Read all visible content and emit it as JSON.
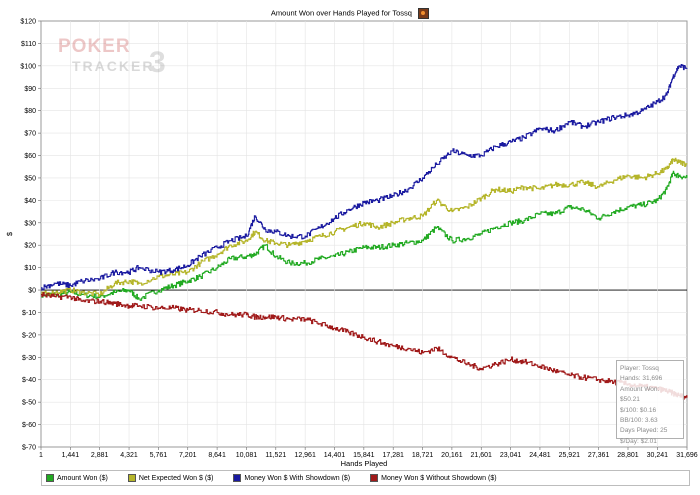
{
  "chart_data": {
    "type": "line",
    "title": "Amount Won over Hands Played for Tossq",
    "xlabel": "Hands Played",
    "ylabel": "$",
    "xlim": [
      1,
      31696
    ],
    "ylim": [
      -70,
      120
    ],
    "x_ticks": [
      "1",
      "1,441",
      "2,881",
      "4,321",
      "5,761",
      "7,201",
      "8,641",
      "10,081",
      "11,521",
      "12,961",
      "14,401",
      "15,841",
      "17,281",
      "18,721",
      "20,161",
      "21,601",
      "23,041",
      "24,481",
      "25,921",
      "27,361",
      "28,801",
      "30,241",
      "31,696"
    ],
    "y_ticks": [
      "$120",
      "$110",
      "$100",
      "$90",
      "$80",
      "$70",
      "$60",
      "$50",
      "$40",
      "$30",
      "$20",
      "$10",
      "$0",
      "$-10",
      "$-20",
      "$-30",
      "$-40",
      "$-50",
      "$-60",
      "$-70"
    ],
    "grid": true,
    "legend_position": "bottom",
    "series": [
      {
        "name": "Amount Won ($)",
        "color": "#22aa22",
        "x": [
          1,
          700,
          1441,
          2000,
          2881,
          3600,
          4321,
          4800,
          5761,
          6500,
          7201,
          7800,
          8641,
          9300,
          10081,
          10500,
          11000,
          11521,
          12200,
          12961,
          13700,
          14401,
          15100,
          15841,
          16500,
          17281,
          18000,
          18721,
          19400,
          20161,
          20900,
          21601,
          22300,
          23041,
          23700,
          24481,
          25200,
          25921,
          26600,
          27361,
          28100,
          28801,
          29500,
          30241,
          30700,
          31000,
          31300,
          31696
        ],
        "y": [
          -2,
          -2,
          -1,
          -2,
          -3,
          -1,
          0,
          -4,
          0,
          2,
          4,
          6,
          10,
          14,
          15,
          16,
          20,
          15,
          12,
          12,
          14,
          15,
          17,
          19,
          19,
          20,
          21,
          22,
          28,
          22,
          23,
          25,
          28,
          30,
          31,
          34,
          34,
          37,
          36,
          32,
          35,
          37,
          38,
          40,
          45,
          52,
          51,
          50
        ]
      },
      {
        "name": "Net Expected Won $ ($)",
        "color": "#b5b52a",
        "x": [
          1,
          700,
          1441,
          2000,
          2881,
          3600,
          4321,
          4800,
          5761,
          6500,
          7201,
          7800,
          8641,
          9300,
          10081,
          10500,
          11000,
          11521,
          12200,
          12961,
          13700,
          14401,
          15100,
          15841,
          16500,
          17281,
          18000,
          18721,
          19400,
          20161,
          20900,
          21601,
          22300,
          23041,
          23700,
          24481,
          25200,
          25921,
          26600,
          27361,
          28100,
          28801,
          29500,
          30241,
          30700,
          31000,
          31300,
          31696
        ],
        "y": [
          -2,
          -1,
          0,
          -1,
          -2,
          3,
          4,
          3,
          6,
          7,
          8,
          12,
          16,
          20,
          22,
          26,
          22,
          21,
          20,
          22,
          24,
          26,
          28,
          30,
          28,
          30,
          32,
          33,
          40,
          35,
          37,
          41,
          45,
          44,
          46,
          45,
          47,
          47,
          48,
          46,
          49,
          51,
          50,
          52,
          54,
          58,
          57,
          56
        ]
      },
      {
        "name": "Money Won $ With Showdown ($)",
        "color": "#1a1aa0",
        "x": [
          1,
          700,
          1441,
          2000,
          2881,
          3600,
          4321,
          4800,
          5761,
          6500,
          7201,
          7800,
          8641,
          9300,
          10081,
          10500,
          11000,
          11521,
          12200,
          12961,
          13700,
          14401,
          15100,
          15841,
          16500,
          17281,
          18000,
          18721,
          19400,
          20161,
          20900,
          21601,
          22300,
          23041,
          23700,
          24481,
          25200,
          25921,
          26600,
          27361,
          28100,
          28801,
          29500,
          30241,
          30700,
          31000,
          31300,
          31696
        ],
        "y": [
          1,
          3,
          2,
          4,
          5,
          8,
          8,
          10,
          8,
          9,
          11,
          15,
          19,
          22,
          24,
          33,
          27,
          26,
          24,
          24,
          28,
          32,
          36,
          39,
          40,
          42,
          45,
          50,
          56,
          62,
          60,
          60,
          64,
          66,
          68,
          72,
          71,
          75,
          73,
          75,
          77,
          78,
          80,
          84,
          87,
          95,
          100,
          99
        ]
      },
      {
        "name": "Money Won $ Without Showdown ($)",
        "color": "#a01a1a",
        "x": [
          1,
          700,
          1441,
          2000,
          2881,
          3600,
          4321,
          4800,
          5761,
          6500,
          7201,
          7800,
          8641,
          9300,
          10081,
          10500,
          11000,
          11521,
          12200,
          12961,
          13700,
          14401,
          15100,
          15841,
          16500,
          17281,
          18000,
          18721,
          19400,
          20161,
          20900,
          21601,
          22300,
          23041,
          23700,
          24481,
          25200,
          25921,
          26600,
          27361,
          28100,
          28801,
          29500,
          30241,
          30700,
          31000,
          31300,
          31696
        ],
        "y": [
          -2,
          -3,
          -3,
          -5,
          -5,
          -6,
          -7,
          -7,
          -8,
          -8,
          -9,
          -9,
          -10,
          -11,
          -11,
          -12,
          -12,
          -12,
          -13,
          -13,
          -15,
          -17,
          -19,
          -21,
          -23,
          -25,
          -26,
          -28,
          -26,
          -30,
          -33,
          -35,
          -33,
          -31,
          -32,
          -34,
          -36,
          -38,
          -39,
          -40,
          -41,
          -42,
          -43,
          -44,
          -45,
          -46,
          -47,
          -48
        ]
      }
    ]
  },
  "info_box": {
    "player": "Player: Tossq",
    "hands": "Hands: 31,696",
    "amount_won": "Amount Won: $50.21",
    "per100": "$/100: $0.16",
    "bb100": "BB/100: 3.63",
    "days": "Days Played: 25",
    "perday": "$/Day: $2.01"
  },
  "watermark": {
    "line1": "POKER",
    "line2": "TRACKER",
    "version": "3"
  }
}
